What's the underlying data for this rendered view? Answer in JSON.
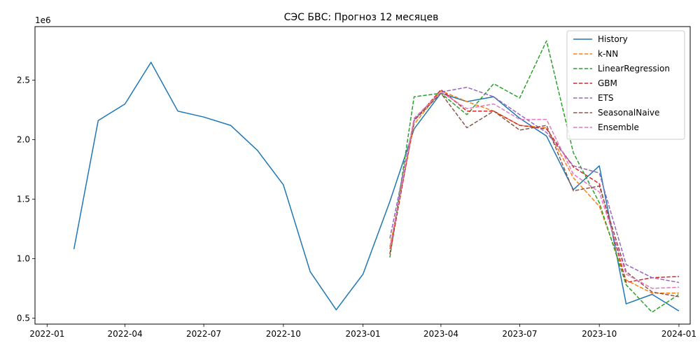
{
  "chart_data": {
    "type": "line",
    "title": "СЭС БВС: Прогноз 12 месяцев",
    "xlabel": "",
    "ylabel": "",
    "y_offset_label": "1e6",
    "xlim": [
      "2021-12-18",
      "2024-01-14"
    ],
    "ylim": [
      0.45,
      2.95
    ],
    "x_ticks": [
      {
        "date": "2022-01-01",
        "label": "2022-01"
      },
      {
        "date": "2022-04-01",
        "label": "2022-04"
      },
      {
        "date": "2022-07-01",
        "label": "2022-07"
      },
      {
        "date": "2022-10-01",
        "label": "2022-10"
      },
      {
        "date": "2023-01-01",
        "label": "2023-01"
      },
      {
        "date": "2023-04-01",
        "label": "2023-04"
      },
      {
        "date": "2023-07-01",
        "label": "2023-07"
      },
      {
        "date": "2023-10-01",
        "label": "2023-10"
      },
      {
        "date": "2024-01-01",
        "label": "2024-01"
      }
    ],
    "y_ticks": [
      {
        "value": 0.5,
        "label": "0.5"
      },
      {
        "value": 1.0,
        "label": "1.0"
      },
      {
        "value": 1.5,
        "label": "1.5"
      },
      {
        "value": 2.0,
        "label": "2.0"
      },
      {
        "value": 2.5,
        "label": "2.5"
      }
    ],
    "grid": false,
    "legend_position": "top-right",
    "series": [
      {
        "name": "History",
        "color": "#1f77b4",
        "style": "solid",
        "x": [
          "2022-02-01",
          "2022-03-01",
          "2022-04-01",
          "2022-05-01",
          "2022-06-01",
          "2022-07-01",
          "2022-08-01",
          "2022-09-01",
          "2022-10-01",
          "2022-11-01",
          "2022-12-01",
          "2023-01-01",
          "2023-02-01",
          "2023-03-01",
          "2023-04-01",
          "2023-05-01",
          "2023-06-01",
          "2023-07-01",
          "2023-08-01",
          "2023-09-01",
          "2023-10-01",
          "2023-11-01",
          "2023-12-01",
          "2024-01-01"
        ],
        "y": [
          1.08,
          2.16,
          2.3,
          2.65,
          2.24,
          2.19,
          2.12,
          1.91,
          1.62,
          0.89,
          0.57,
          0.87,
          1.48,
          2.09,
          2.39,
          2.32,
          2.36,
          2.18,
          2.03,
          1.58,
          1.78,
          0.62,
          0.7,
          0.56
        ]
      },
      {
        "name": "k-NN",
        "color": "#ff7f0e",
        "style": "dashed",
        "x": [
          "2023-02-01",
          "2023-03-01",
          "2023-04-01",
          "2023-05-01",
          "2023-06-01",
          "2023-07-01",
          "2023-08-01",
          "2023-09-01",
          "2023-10-01",
          "2023-11-01",
          "2023-12-01",
          "2024-01-01"
        ],
        "y": [
          1.1,
          2.13,
          2.41,
          2.32,
          2.24,
          2.12,
          2.1,
          1.68,
          1.44,
          0.82,
          0.71,
          0.71
        ]
      },
      {
        "name": "LinearRegression",
        "color": "#2ca02c",
        "style": "dashed",
        "x": [
          "2023-02-01",
          "2023-03-01",
          "2023-04-01",
          "2023-05-01",
          "2023-06-01",
          "2023-07-01",
          "2023-08-01",
          "2023-09-01",
          "2023-10-01",
          "2023-11-01",
          "2023-12-01",
          "2024-01-01"
        ],
        "y": [
          1.01,
          2.36,
          2.39,
          2.21,
          2.47,
          2.35,
          2.83,
          1.89,
          1.47,
          0.78,
          0.55,
          0.7
        ]
      },
      {
        "name": "GBM",
        "color": "#d62728",
        "style": "dashed",
        "x": [
          "2023-02-01",
          "2023-03-01",
          "2023-04-01",
          "2023-05-01",
          "2023-06-01",
          "2023-07-01",
          "2023-08-01",
          "2023-09-01",
          "2023-10-01",
          "2023-11-01",
          "2023-12-01",
          "2024-01-01"
        ],
        "y": [
          1.04,
          2.16,
          2.42,
          2.24,
          2.24,
          2.12,
          2.09,
          1.77,
          1.63,
          0.8,
          0.84,
          0.85
        ]
      },
      {
        "name": "ETS",
        "color": "#9467bd",
        "style": "dashed",
        "x": [
          "2023-02-01",
          "2023-03-01",
          "2023-04-01",
          "2023-05-01",
          "2023-06-01",
          "2023-07-01",
          "2023-08-01",
          "2023-09-01",
          "2023-10-01",
          "2023-11-01",
          "2023-12-01",
          "2024-01-01"
        ],
        "y": [
          1.17,
          2.17,
          2.4,
          2.44,
          2.36,
          2.21,
          2.06,
          1.78,
          1.72,
          0.95,
          0.84,
          0.8
        ]
      },
      {
        "name": "SeasonalNaive",
        "color": "#8c564b",
        "style": "dashed",
        "x": [
          "2023-02-01",
          "2023-03-01",
          "2023-04-01",
          "2023-05-01",
          "2023-06-01",
          "2023-07-01",
          "2023-08-01",
          "2023-09-01",
          "2023-10-01",
          "2023-11-01",
          "2023-12-01",
          "2024-01-01"
        ],
        "y": [
          1.08,
          2.16,
          2.39,
          2.1,
          2.24,
          2.08,
          2.12,
          1.57,
          1.61,
          0.89,
          0.72,
          0.68
        ]
      },
      {
        "name": "Ensemble",
        "color": "#e377c2",
        "style": "dashed",
        "x": [
          "2023-02-01",
          "2023-03-01",
          "2023-04-01",
          "2023-05-01",
          "2023-06-01",
          "2023-07-01",
          "2023-08-01",
          "2023-09-01",
          "2023-10-01",
          "2023-11-01",
          "2023-12-01",
          "2024-01-01"
        ],
        "y": [
          1.08,
          2.18,
          2.4,
          2.26,
          2.3,
          2.17,
          2.17,
          1.71,
          1.56,
          0.87,
          0.75,
          0.76
        ]
      }
    ]
  }
}
